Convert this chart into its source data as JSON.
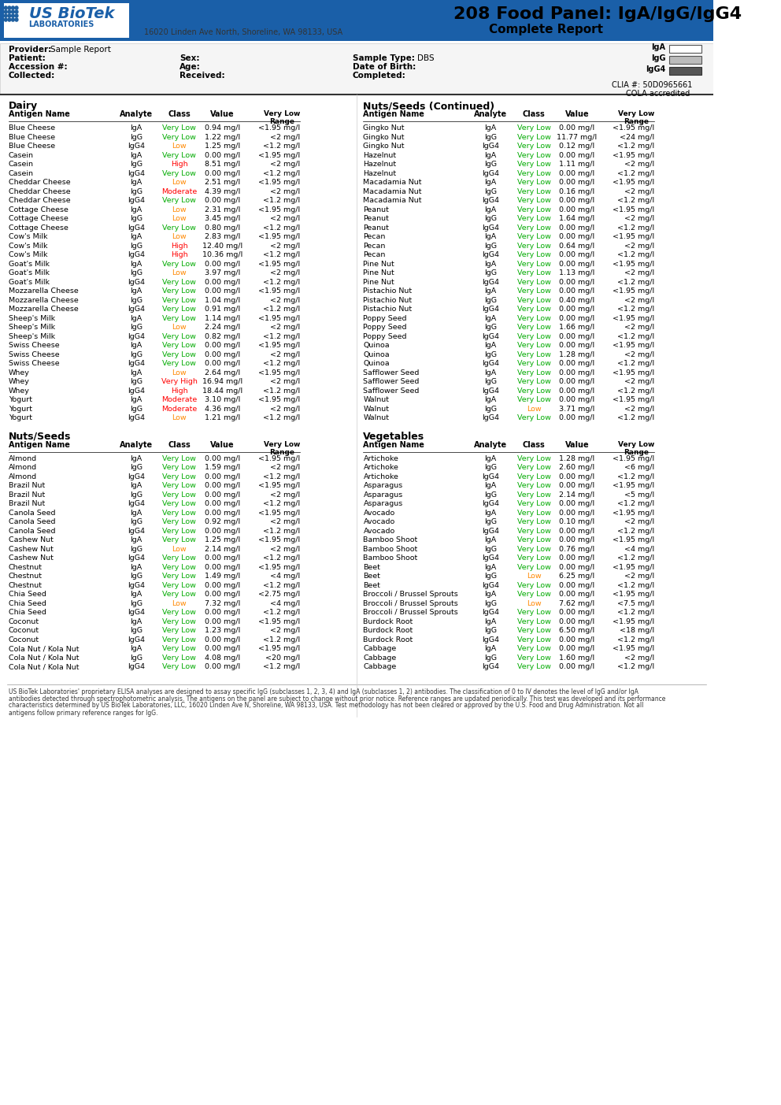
{
  "title": "208 Food Panel: IgA/IgG/IgG4",
  "subtitle": "Complete Report",
  "address": "16020 Linden Ave North, Shoreline, WA 98133, USA",
  "provider": "Sample Report",
  "patient": "",
  "accession": "",
  "collected": "",
  "sex": "",
  "age": "",
  "received": "",
  "sample_type": "DBS",
  "date_of_birth": "",
  "completed": "",
  "clia": "CLIA #: 50D0965661",
  "cola": "COLA accredited",
  "legend_colors": {
    "IgA": "#ffffff",
    "IgG": "#aaaaaa",
    "IgG4": "#555555"
  },
  "color_very_low": "#00aa00",
  "color_low": "#ff8800",
  "color_moderate": "#ff0000",
  "color_high": "#ff0000",
  "color_very_high": "#ff0000",
  "dairy_data": [
    [
      "Blue Cheese",
      "IgA",
      "Very Low",
      "0.94 mg/l",
      "<1.95 mg/l"
    ],
    [
      "Blue Cheese",
      "IgG",
      "Very Low",
      "1.22 mg/l",
      "<2 mg/l"
    ],
    [
      "Blue Cheese",
      "IgG4",
      "Low",
      "1.25 mg/l",
      "<1.2 mg/l"
    ],
    [
      "Casein",
      "IgA",
      "Very Low",
      "0.00 mg/l",
      "<1.95 mg/l"
    ],
    [
      "Casein",
      "IgG",
      "High",
      "8.51 mg/l",
      "<2 mg/l"
    ],
    [
      "Casein",
      "IgG4",
      "Very Low",
      "0.00 mg/l",
      "<1.2 mg/l"
    ],
    [
      "Cheddar Cheese",
      "IgA",
      "Low",
      "2.51 mg/l",
      "<1.95 mg/l"
    ],
    [
      "Cheddar Cheese",
      "IgG",
      "Moderate",
      "4.39 mg/l",
      "<2 mg/l"
    ],
    [
      "Cheddar Cheese",
      "IgG4",
      "Very Low",
      "0.00 mg/l",
      "<1.2 mg/l"
    ],
    [
      "Cottage Cheese",
      "IgA",
      "Low",
      "2.31 mg/l",
      "<1.95 mg/l"
    ],
    [
      "Cottage Cheese",
      "IgG",
      "Low",
      "3.45 mg/l",
      "<2 mg/l"
    ],
    [
      "Cottage Cheese",
      "IgG4",
      "Very Low",
      "0.80 mg/l",
      "<1.2 mg/l"
    ],
    [
      "Cow's Milk",
      "IgA",
      "Low",
      "2.83 mg/l",
      "<1.95 mg/l"
    ],
    [
      "Cow's Milk",
      "IgG",
      "High",
      "12.40 mg/l",
      "<2 mg/l"
    ],
    [
      "Cow's Milk",
      "IgG4",
      "High",
      "10.36 mg/l",
      "<1.2 mg/l"
    ],
    [
      "Goat's Milk",
      "IgA",
      "Very Low",
      "0.00 mg/l",
      "<1.95 mg/l"
    ],
    [
      "Goat's Milk",
      "IgG",
      "Low",
      "3.97 mg/l",
      "<2 mg/l"
    ],
    [
      "Goat's Milk",
      "IgG4",
      "Very Low",
      "0.00 mg/l",
      "<1.2 mg/l"
    ],
    [
      "Mozzarella Cheese",
      "IgA",
      "Very Low",
      "0.00 mg/l",
      "<1.95 mg/l"
    ],
    [
      "Mozzarella Cheese",
      "IgG",
      "Very Low",
      "1.04 mg/l",
      "<2 mg/l"
    ],
    [
      "Mozzarella Cheese",
      "IgG4",
      "Very Low",
      "0.91 mg/l",
      "<1.2 mg/l"
    ],
    [
      "Sheep's Milk",
      "IgA",
      "Very Low",
      "1.14 mg/l",
      "<1.95 mg/l"
    ],
    [
      "Sheep's Milk",
      "IgG",
      "Low",
      "2.24 mg/l",
      "<2 mg/l"
    ],
    [
      "Sheep's Milk",
      "IgG4",
      "Very Low",
      "0.82 mg/l",
      "<1.2 mg/l"
    ],
    [
      "Swiss Cheese",
      "IgA",
      "Very Low",
      "0.00 mg/l",
      "<1.95 mg/l"
    ],
    [
      "Swiss Cheese",
      "IgG",
      "Very Low",
      "0.00 mg/l",
      "<2 mg/l"
    ],
    [
      "Swiss Cheese",
      "IgG4",
      "Very Low",
      "0.00 mg/l",
      "<1.2 mg/l"
    ],
    [
      "Whey",
      "IgA",
      "Low",
      "2.64 mg/l",
      "<1.95 mg/l"
    ],
    [
      "Whey",
      "IgG",
      "Very High",
      "16.94 mg/l",
      "<2 mg/l"
    ],
    [
      "Whey",
      "IgG4",
      "High",
      "18.44 mg/l",
      "<1.2 mg/l"
    ],
    [
      "Yogurt",
      "IgA",
      "Moderate",
      "3.10 mg/l",
      "<1.95 mg/l"
    ],
    [
      "Yogurt",
      "IgG",
      "Moderate",
      "4.36 mg/l",
      "<2 mg/l"
    ],
    [
      "Yogurt",
      "IgG4",
      "Low",
      "1.21 mg/l",
      "<1.2 mg/l"
    ]
  ],
  "nuts_seeds_data": [
    [
      "Almond",
      "IgA",
      "Very Low",
      "0.00 mg/l",
      "<1.95 mg/l"
    ],
    [
      "Almond",
      "IgG",
      "Very Low",
      "1.59 mg/l",
      "<2 mg/l"
    ],
    [
      "Almond",
      "IgG4",
      "Very Low",
      "0.00 mg/l",
      "<1.2 mg/l"
    ],
    [
      "Brazil Nut",
      "IgA",
      "Very Low",
      "0.00 mg/l",
      "<1.95 mg/l"
    ],
    [
      "Brazil Nut",
      "IgG",
      "Very Low",
      "0.00 mg/l",
      "<2 mg/l"
    ],
    [
      "Brazil Nut",
      "IgG4",
      "Very Low",
      "0.00 mg/l",
      "<1.2 mg/l"
    ],
    [
      "Canola Seed",
      "IgA",
      "Very Low",
      "0.00 mg/l",
      "<1.95 mg/l"
    ],
    [
      "Canola Seed",
      "IgG",
      "Very Low",
      "0.92 mg/l",
      "<2 mg/l"
    ],
    [
      "Canola Seed",
      "IgG4",
      "Very Low",
      "0.00 mg/l",
      "<1.2 mg/l"
    ],
    [
      "Cashew Nut",
      "IgA",
      "Very Low",
      "1.25 mg/l",
      "<1.95 mg/l"
    ],
    [
      "Cashew Nut",
      "IgG",
      "Low",
      "2.14 mg/l",
      "<2 mg/l"
    ],
    [
      "Cashew Nut",
      "IgG4",
      "Very Low",
      "0.00 mg/l",
      "<1.2 mg/l"
    ],
    [
      "Chestnut",
      "IgA",
      "Very Low",
      "0.00 mg/l",
      "<1.95 mg/l"
    ],
    [
      "Chestnut",
      "IgG",
      "Very Low",
      "1.49 mg/l",
      "<4 mg/l"
    ],
    [
      "Chestnut",
      "IgG4",
      "Very Low",
      "0.00 mg/l",
      "<1.2 mg/l"
    ],
    [
      "Chia Seed",
      "IgA",
      "Very Low",
      "0.00 mg/l",
      "<2.75 mg/l"
    ],
    [
      "Chia Seed",
      "IgG",
      "Low",
      "7.32 mg/l",
      "<4 mg/l"
    ],
    [
      "Chia Seed",
      "IgG4",
      "Very Low",
      "0.00 mg/l",
      "<1.2 mg/l"
    ],
    [
      "Coconut",
      "IgA",
      "Very Low",
      "0.00 mg/l",
      "<1.95 mg/l"
    ],
    [
      "Coconut",
      "IgG",
      "Very Low",
      "1.23 mg/l",
      "<2 mg/l"
    ],
    [
      "Coconut",
      "IgG4",
      "Very Low",
      "0.00 mg/l",
      "<1.2 mg/l"
    ],
    [
      "Cola Nut / Kola Nut",
      "IgA",
      "Very Low",
      "0.00 mg/l",
      "<1.95 mg/l"
    ],
    [
      "Cola Nut / Kola Nut",
      "IgG",
      "Very Low",
      "4.08 mg/l",
      "<20 mg/l"
    ],
    [
      "Cola Nut / Kola Nut",
      "IgG4",
      "Very Low",
      "0.00 mg/l",
      "<1.2 mg/l"
    ]
  ],
  "nuts_seeds_cont_data": [
    [
      "Gingko Nut",
      "IgA",
      "Very Low",
      "0.00 mg/l",
      "<1.95 mg/l"
    ],
    [
      "Gingko Nut",
      "IgG",
      "Very Low",
      "11.77 mg/l",
      "<24 mg/l"
    ],
    [
      "Gingko Nut",
      "IgG4",
      "Very Low",
      "0.12 mg/l",
      "<1.2 mg/l"
    ],
    [
      "Hazelnut",
      "IgA",
      "Very Low",
      "0.00 mg/l",
      "<1.95 mg/l"
    ],
    [
      "Hazelnut",
      "IgG",
      "Very Low",
      "1.11 mg/l",
      "<2 mg/l"
    ],
    [
      "Hazelnut",
      "IgG4",
      "Very Low",
      "0.00 mg/l",
      "<1.2 mg/l"
    ],
    [
      "Macadamia Nut",
      "IgA",
      "Very Low",
      "0.00 mg/l",
      "<1.95 mg/l"
    ],
    [
      "Macadamia Nut",
      "IgG",
      "Very Low",
      "0.16 mg/l",
      "<2 mg/l"
    ],
    [
      "Macadamia Nut",
      "IgG4",
      "Very Low",
      "0.00 mg/l",
      "<1.2 mg/l"
    ],
    [
      "Peanut",
      "IgA",
      "Very Low",
      "0.00 mg/l",
      "<1.95 mg/l"
    ],
    [
      "Peanut",
      "IgG",
      "Very Low",
      "1.64 mg/l",
      "<2 mg/l"
    ],
    [
      "Peanut",
      "IgG4",
      "Very Low",
      "0.00 mg/l",
      "<1.2 mg/l"
    ],
    [
      "Pecan",
      "IgA",
      "Very Low",
      "0.00 mg/l",
      "<1.95 mg/l"
    ],
    [
      "Pecan",
      "IgG",
      "Very Low",
      "0.64 mg/l",
      "<2 mg/l"
    ],
    [
      "Pecan",
      "IgG4",
      "Very Low",
      "0.00 mg/l",
      "<1.2 mg/l"
    ],
    [
      "Pine Nut",
      "IgA",
      "Very Low",
      "0.00 mg/l",
      "<1.95 mg/l"
    ],
    [
      "Pine Nut",
      "IgG",
      "Very Low",
      "1.13 mg/l",
      "<2 mg/l"
    ],
    [
      "Pine Nut",
      "IgG4",
      "Very Low",
      "0.00 mg/l",
      "<1.2 mg/l"
    ],
    [
      "Pistachio Nut",
      "IgA",
      "Very Low",
      "0.00 mg/l",
      "<1.95 mg/l"
    ],
    [
      "Pistachio Nut",
      "IgG",
      "Very Low",
      "0.40 mg/l",
      "<2 mg/l"
    ],
    [
      "Pistachio Nut",
      "IgG4",
      "Very Low",
      "0.00 mg/l",
      "<1.2 mg/l"
    ],
    [
      "Poppy Seed",
      "IgA",
      "Very Low",
      "0.00 mg/l",
      "<1.95 mg/l"
    ],
    [
      "Poppy Seed",
      "IgG",
      "Very Low",
      "1.66 mg/l",
      "<2 mg/l"
    ],
    [
      "Poppy Seed",
      "IgG4",
      "Very Low",
      "0.00 mg/l",
      "<1.2 mg/l"
    ],
    [
      "Quinoa",
      "IgA",
      "Very Low",
      "0.00 mg/l",
      "<1.95 mg/l"
    ],
    [
      "Quinoa",
      "IgG",
      "Very Low",
      "1.28 mg/l",
      "<2 mg/l"
    ],
    [
      "Quinoa",
      "IgG4",
      "Very Low",
      "0.00 mg/l",
      "<1.2 mg/l"
    ],
    [
      "Safflower Seed",
      "IgA",
      "Very Low",
      "0.00 mg/l",
      "<1.95 mg/l"
    ],
    [
      "Safflower Seed",
      "IgG",
      "Very Low",
      "0.00 mg/l",
      "<2 mg/l"
    ],
    [
      "Safflower Seed",
      "IgG4",
      "Very Low",
      "0.00 mg/l",
      "<1.2 mg/l"
    ],
    [
      "Walnut",
      "IgA",
      "Very Low",
      "0.00 mg/l",
      "<1.95 mg/l"
    ],
    [
      "Walnut",
      "IgG",
      "Low",
      "3.71 mg/l",
      "<2 mg/l"
    ],
    [
      "Walnut",
      "IgG4",
      "Very Low",
      "0.00 mg/l",
      "<1.2 mg/l"
    ]
  ],
  "vegetables_data": [
    [
      "Artichoke",
      "IgA",
      "Very Low",
      "1.28 mg/l",
      "<1.95 mg/l"
    ],
    [
      "Artichoke",
      "IgG",
      "Very Low",
      "2.60 mg/l",
      "<6 mg/l"
    ],
    [
      "Artichoke",
      "IgG4",
      "Very Low",
      "0.00 mg/l",
      "<1.2 mg/l"
    ],
    [
      "Asparagus",
      "IgA",
      "Very Low",
      "0.00 mg/l",
      "<1.95 mg/l"
    ],
    [
      "Asparagus",
      "IgG",
      "Very Low",
      "2.14 mg/l",
      "<5 mg/l"
    ],
    [
      "Asparagus",
      "IgG4",
      "Very Low",
      "0.00 mg/l",
      "<1.2 mg/l"
    ],
    [
      "Avocado",
      "IgA",
      "Very Low",
      "0.00 mg/l",
      "<1.95 mg/l"
    ],
    [
      "Avocado",
      "IgG",
      "Very Low",
      "0.10 mg/l",
      "<2 mg/l"
    ],
    [
      "Avocado",
      "IgG4",
      "Very Low",
      "0.00 mg/l",
      "<1.2 mg/l"
    ],
    [
      "Bamboo Shoot",
      "IgA",
      "Very Low",
      "0.00 mg/l",
      "<1.95 mg/l"
    ],
    [
      "Bamboo Shoot",
      "IgG",
      "Very Low",
      "0.76 mg/l",
      "<4 mg/l"
    ],
    [
      "Bamboo Shoot",
      "IgG4",
      "Very Low",
      "0.00 mg/l",
      "<1.2 mg/l"
    ],
    [
      "Beet",
      "IgA",
      "Very Low",
      "0.00 mg/l",
      "<1.95 mg/l"
    ],
    [
      "Beet",
      "IgG",
      "Low",
      "6.25 mg/l",
      "<2 mg/l"
    ],
    [
      "Beet",
      "IgG4",
      "Very Low",
      "0.00 mg/l",
      "<1.2 mg/l"
    ],
    [
      "Broccoli / Brussel Sprouts",
      "IgA",
      "Very Low",
      "0.00 mg/l",
      "<1.95 mg/l"
    ],
    [
      "Broccoli / Brussel Sprouts",
      "IgG",
      "Low",
      "7.62 mg/l",
      "<7.5 mg/l"
    ],
    [
      "Broccoli / Brussel Sprouts",
      "IgG4",
      "Very Low",
      "0.00 mg/l",
      "<1.2 mg/l"
    ],
    [
      "Burdock Root",
      "IgA",
      "Very Low",
      "0.00 mg/l",
      "<1.95 mg/l"
    ],
    [
      "Burdock Root",
      "IgG",
      "Very Low",
      "6.50 mg/l",
      "<18 mg/l"
    ],
    [
      "Burdock Root",
      "IgG4",
      "Very Low",
      "0.00 mg/l",
      "<1.2 mg/l"
    ],
    [
      "Cabbage",
      "IgA",
      "Very Low",
      "0.00 mg/l",
      "<1.95 mg/l"
    ],
    [
      "Cabbage",
      "IgG",
      "Very Low",
      "1.60 mg/l",
      "<2 mg/l"
    ],
    [
      "Cabbage",
      "IgG4",
      "Very Low",
      "0.00 mg/l",
      "<1.2 mg/l"
    ]
  ],
  "footer_text": "US BioTek Laboratories' proprietary ELISA analyses are designed to assay specific IgG (subclasses 1, 2, 3, 4) and IgA (subclasses 1, 2) antibodies. The classification of 0 to IV denotes the level of IgG and/or IgA antibodies detected through spectrophotometric analysis. The antigens on the panel are subject to change without prior notice. Reference ranges are updated periodically. This test was developed and its performance characteristics determined by US BioTek Laboratories, LLC, 16020 Linden Ave N, Shoreline, WA 98133, USA. Test methodology has not been cleared or approved by the U.S. Food and Drug Administration. Not all antigens follow primary reference ranges for IgG."
}
